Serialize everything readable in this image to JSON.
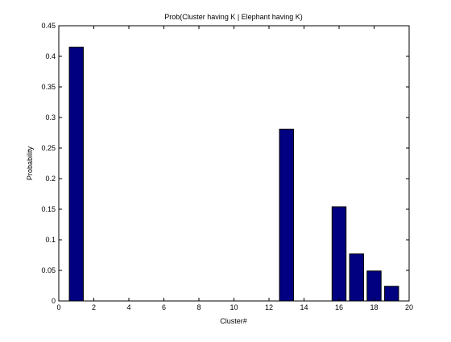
{
  "chart_data": {
    "type": "bar",
    "title": "Prob(Cluster having K | Elephant having K)",
    "xlabel": "Cluster#",
    "ylabel": "Probability",
    "xlim": [
      0,
      20
    ],
    "ylim": [
      0,
      0.45
    ],
    "x_ticks": [
      0,
      2,
      4,
      6,
      8,
      10,
      12,
      14,
      16,
      18,
      20
    ],
    "y_ticks": [
      0,
      0.05,
      0.1,
      0.15,
      0.2,
      0.25,
      0.3,
      0.35,
      0.4,
      0.45
    ],
    "y_tick_labels": [
      "0",
      "0.05",
      "0.1",
      "0.15",
      "0.2",
      "0.25",
      "0.3",
      "0.35",
      "0.4",
      "0.45"
    ],
    "x": [
      1,
      13,
      16,
      17,
      18,
      19
    ],
    "values": [
      0.415,
      0.281,
      0.154,
      0.077,
      0.049,
      0.024
    ],
    "bar_width": 0.8,
    "grid": false,
    "colors": {
      "bar_fill": "#000080",
      "bar_edge": "#000000",
      "axes": "#000000",
      "background": "#ffffff"
    }
  }
}
